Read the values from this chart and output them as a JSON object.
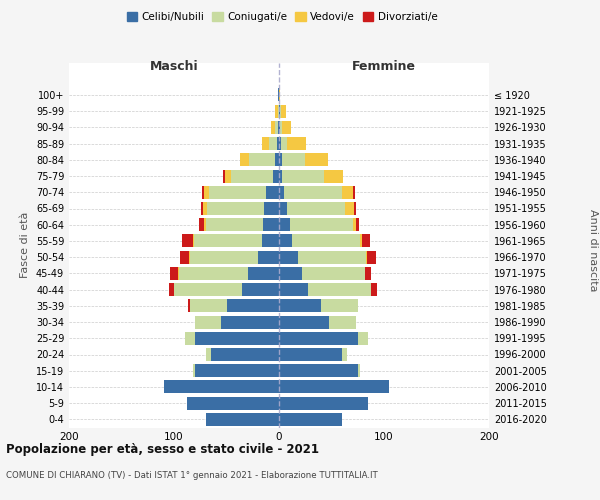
{
  "age_groups": [
    "0-4",
    "5-9",
    "10-14",
    "15-19",
    "20-24",
    "25-29",
    "30-34",
    "35-39",
    "40-44",
    "45-49",
    "50-54",
    "55-59",
    "60-64",
    "65-69",
    "70-74",
    "75-79",
    "80-84",
    "85-89",
    "90-94",
    "95-99",
    "100+"
  ],
  "birth_years": [
    "2016-2020",
    "2011-2015",
    "2006-2010",
    "2001-2005",
    "1996-2000",
    "1991-1995",
    "1986-1990",
    "1981-1985",
    "1976-1980",
    "1971-1975",
    "1966-1970",
    "1961-1965",
    "1956-1960",
    "1951-1955",
    "1946-1950",
    "1941-1945",
    "1936-1940",
    "1931-1935",
    "1926-1930",
    "1921-1925",
    "≤ 1920"
  ],
  "colors": {
    "celibi": "#3a6ea5",
    "coniugati": "#c8dba0",
    "vedovi": "#f5c842",
    "divorziati": "#cc1a1a"
  },
  "maschi": {
    "celibi": [
      70,
      88,
      110,
      80,
      65,
      80,
      55,
      50,
      35,
      30,
      20,
      16,
      15,
      14,
      12,
      6,
      4,
      2,
      1,
      0,
      1
    ],
    "coniugati": [
      0,
      0,
      0,
      2,
      5,
      10,
      25,
      35,
      65,
      65,
      65,
      65,
      55,
      55,
      55,
      40,
      25,
      8,
      3,
      1,
      0
    ],
    "vedovi": [
      0,
      0,
      0,
      0,
      0,
      0,
      0,
      0,
      0,
      1,
      1,
      1,
      1,
      3,
      4,
      5,
      8,
      6,
      4,
      3,
      0
    ],
    "divorziati": [
      0,
      0,
      0,
      0,
      0,
      0,
      0,
      2,
      5,
      8,
      8,
      10,
      5,
      2,
      2,
      2,
      0,
      0,
      0,
      0,
      0
    ]
  },
  "femmine": {
    "celibi": [
      60,
      85,
      105,
      75,
      60,
      75,
      48,
      40,
      28,
      22,
      18,
      12,
      10,
      8,
      5,
      3,
      3,
      2,
      1,
      1,
      0
    ],
    "coniugati": [
      0,
      0,
      0,
      2,
      5,
      10,
      25,
      35,
      60,
      60,
      65,
      65,
      60,
      55,
      55,
      40,
      22,
      6,
      2,
      1,
      0
    ],
    "vedovi": [
      0,
      0,
      0,
      0,
      0,
      0,
      0,
      0,
      0,
      0,
      1,
      2,
      3,
      8,
      10,
      18,
      22,
      18,
      8,
      5,
      1
    ],
    "divorziati": [
      0,
      0,
      0,
      0,
      0,
      0,
      0,
      0,
      5,
      6,
      8,
      8,
      3,
      2,
      2,
      0,
      0,
      0,
      0,
      0,
      0
    ]
  },
  "xlim": 200,
  "title": "Popolazione per età, sesso e stato civile - 2021",
  "subtitle": "COMUNE DI CHIARANO (TV) - Dati ISTAT 1° gennaio 2021 - Elaborazione TUTTITALIA.IT",
  "ylabel_left": "Fasce di età",
  "ylabel_right": "Anni di nascita",
  "xlabel_left": "Maschi",
  "xlabel_right": "Femmine",
  "bg_color": "#f5f5f5",
  "plot_bg": "#ffffff"
}
